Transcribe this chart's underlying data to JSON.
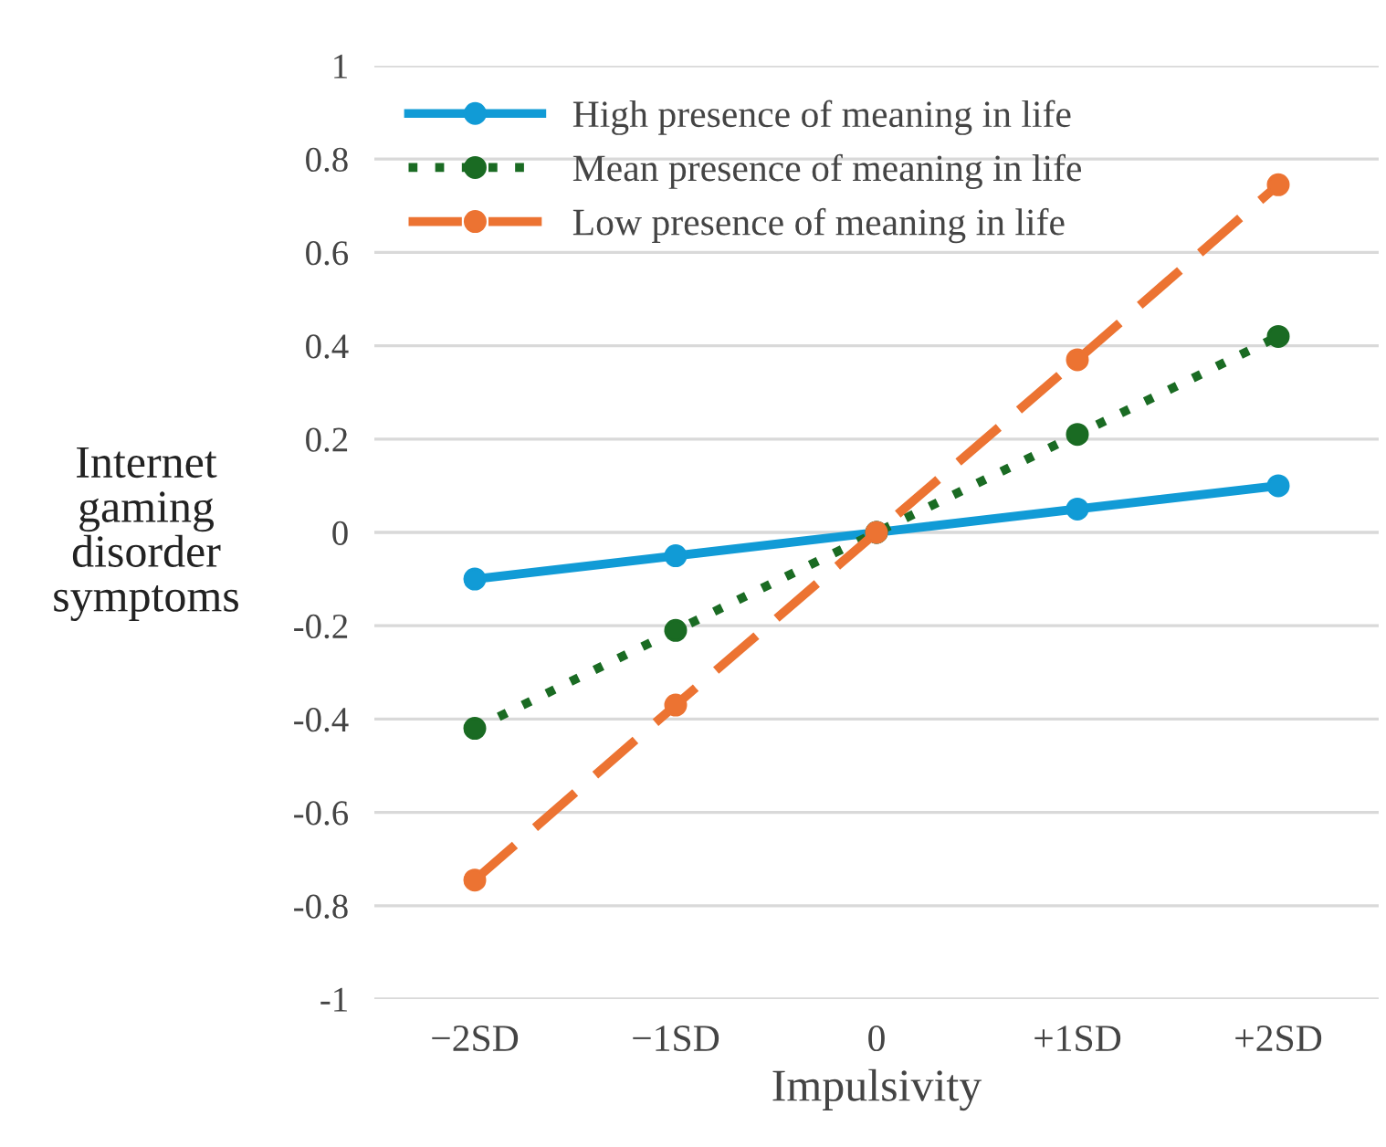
{
  "chart_data": {
    "type": "line",
    "xlabel": "Impulsivity",
    "ylabel": "Internet\ngaming\ndisorder\nsymptoms",
    "categories": [
      "−2SD",
      "−1SD",
      "0",
      "+1SD",
      "+2SD"
    ],
    "series": [
      {
        "name": "High presence of meaning in life",
        "color": "#119bd6",
        "line_style": "solid",
        "values": [
          -0.1,
          -0.05,
          0,
          0.05,
          0.1
        ]
      },
      {
        "name": "Mean presence of meaning in life",
        "color": "#1a6b23",
        "line_style": "dotted",
        "values": [
          -0.42,
          -0.21,
          0,
          0.21,
          0.42
        ]
      },
      {
        "name": "Low presence of meaning in life",
        "color": "#ec7332",
        "line_style": "dashed",
        "values": [
          -0.745,
          -0.37,
          0,
          0.37,
          0.745
        ]
      }
    ],
    "ylim": [
      -1,
      1
    ],
    "yticks": [
      -1,
      -0.8,
      -0.6,
      -0.4,
      -0.2,
      0,
      0.2,
      0.4,
      0.6,
      0.8,
      1
    ],
    "grid": "y",
    "legend": "top left",
    "marker": "circle"
  }
}
